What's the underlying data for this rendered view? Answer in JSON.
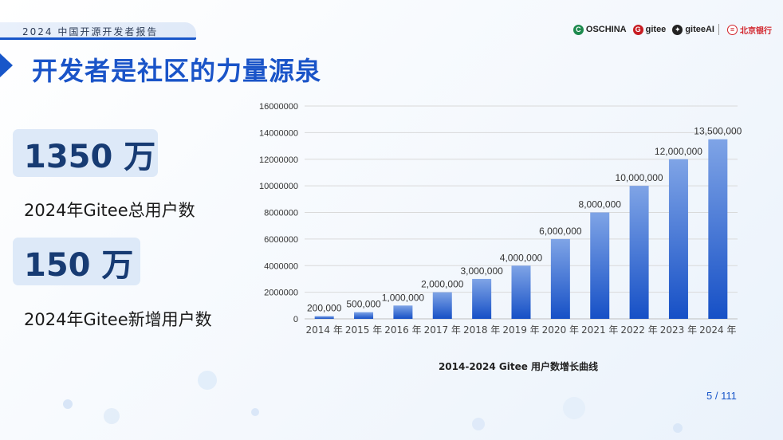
{
  "header": {
    "report_label": "2024 中国开源开发者报告",
    "logos": [
      {
        "name": "OSCHINA",
        "icon": "oschina-logo-icon",
        "color": "#1d8a4e"
      },
      {
        "name": "gitee",
        "icon": "gitee-logo-icon",
        "color": "#c71d23"
      },
      {
        "name": "giteeAI",
        "icon": "gitee-ai-logo-icon",
        "color": "#222222"
      },
      {
        "name": "北京银行",
        "icon": "bank-of-beijing-logo-icon",
        "color": "#d2232a"
      }
    ]
  },
  "page_title": "开发者是社区的力量源泉",
  "stats": [
    {
      "value": "1350 万",
      "label": "2024年Gitee总用户数"
    },
    {
      "value": "150 万",
      "label": "2024年Gitee新增用户数"
    }
  ],
  "chart_data": {
    "type": "bar",
    "title": "2014-2024 Gitee 用户数增长曲线",
    "categories": [
      "2014 年",
      "2015 年",
      "2016 年",
      "2017 年",
      "2018 年",
      "2019 年",
      "2020 年",
      "2021 年",
      "2022 年",
      "2023 年",
      "2024 年"
    ],
    "values": [
      200000,
      500000,
      1000000,
      2000000,
      3000000,
      4000000,
      6000000,
      8000000,
      10000000,
      12000000,
      13500000
    ],
    "data_labels": [
      "200,000",
      "500,000",
      "1,000,000",
      "2,000,000",
      "3,000,000",
      "4,000,000",
      "6,000,000",
      "8,000,000",
      "10,000,000",
      "12,000,000",
      "13,500,000"
    ],
    "ylim": [
      0,
      16000000
    ],
    "yticks": [
      0,
      2000000,
      4000000,
      6000000,
      8000000,
      10000000,
      12000000,
      14000000,
      16000000
    ],
    "ytick_labels": [
      "0",
      "2000000",
      "4000000",
      "6000000",
      "8000000",
      "10000000",
      "12000000",
      "14000000",
      "16000000"
    ],
    "grid": true,
    "bar_color_top": "#7fa4e6",
    "bar_color_bottom": "#1650c6"
  },
  "footer": {
    "page": "5 / 111"
  }
}
